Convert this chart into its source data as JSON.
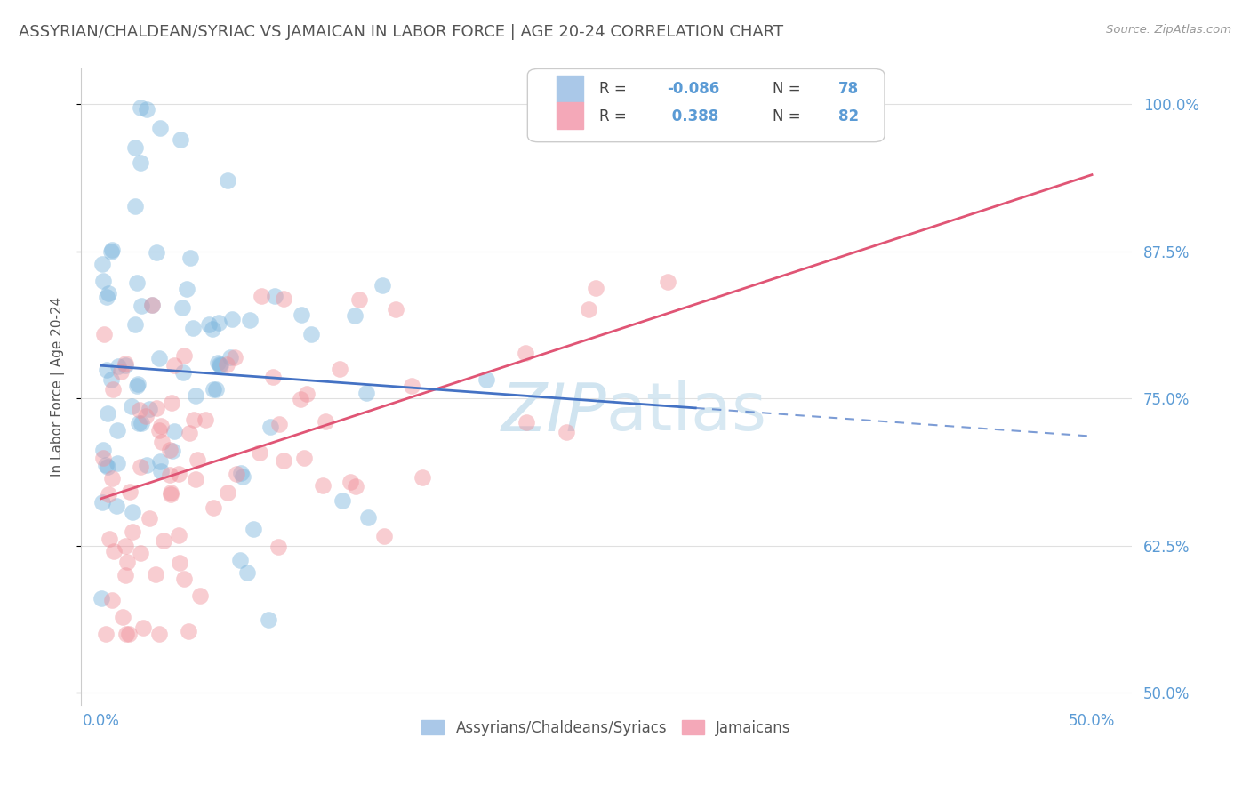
{
  "title": "ASSYRIAN/CHALDEAN/SYRIAC VS JAMAICAN IN LABOR FORCE | AGE 20-24 CORRELATION CHART",
  "source_text": "Source: ZipAtlas.com",
  "ylabel": "In Labor Force | Age 20-24",
  "xlim": [
    -0.01,
    0.52
  ],
  "ylim": [
    0.49,
    1.03
  ],
  "ytick_labels": [
    "50.0%",
    "62.5%",
    "75.0%",
    "87.5%",
    "100.0%"
  ],
  "ytick_values": [
    0.5,
    0.625,
    0.75,
    0.875,
    1.0
  ],
  "xtick_labels": [
    "0.0%",
    "50.0%"
  ],
  "xtick_values": [
    0.0,
    0.5
  ],
  "r_blue": -0.086,
  "n_blue": 78,
  "r_pink": 0.388,
  "n_pink": 82,
  "blue_dot_color": "#7ab5dd",
  "pink_dot_color": "#f0909a",
  "blue_line_color": "#4472c4",
  "pink_line_color": "#e05575",
  "watermark_color": "#d0e4f0",
  "background_color": "#ffffff",
  "grid_color": "#e0e0e0",
  "title_color": "#555555",
  "axis_label_color": "#555555",
  "tick_color": "#5b9bd5",
  "legend_blue_color": "#aac8e8",
  "legend_pink_color": "#f4a8b8",
  "blue_seed": 42,
  "pink_seed": 99
}
